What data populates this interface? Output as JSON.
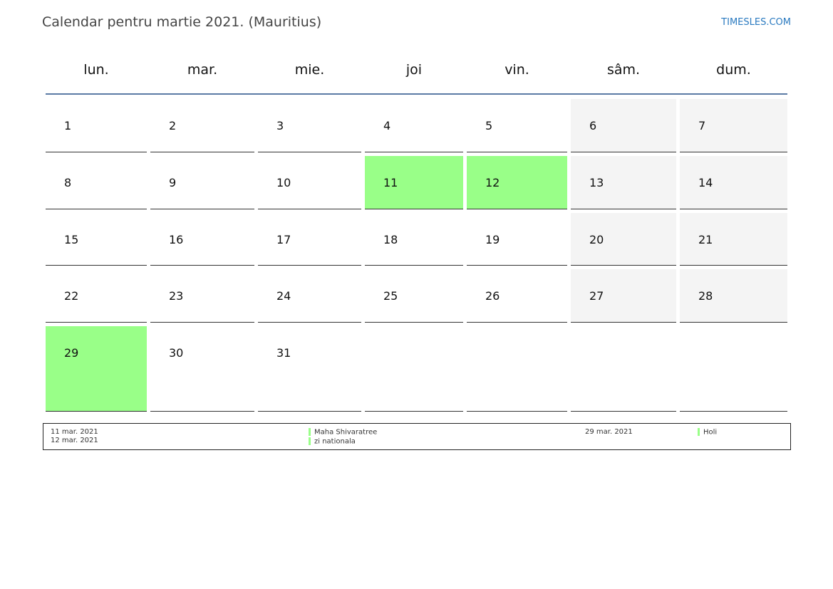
{
  "header": {
    "title": "Calendar pentru martie 2021. (Mauritius)",
    "brand": "TIMESLES.COM"
  },
  "weekdays": [
    "lun.",
    "mar.",
    "mie.",
    "joi",
    "vin.",
    "sâm.",
    "dum."
  ],
  "colors": {
    "holiday": "#99ff88",
    "weekend": "#f4f4f4",
    "header_line": "#5b7ba5"
  },
  "weeks": [
    [
      "1",
      "2",
      "3",
      "4",
      "5",
      "6",
      "7"
    ],
    [
      "8",
      "9",
      "10",
      "11",
      "12",
      "13",
      "14"
    ],
    [
      "15",
      "16",
      "17",
      "18",
      "19",
      "20",
      "21"
    ],
    [
      "22",
      "23",
      "24",
      "25",
      "26",
      "27",
      "28"
    ],
    [
      "29",
      "30",
      "31",
      "",
      "",
      "",
      ""
    ]
  ],
  "holidays": [
    "11",
    "12",
    "29"
  ],
  "legend": [
    {
      "date": "11 mar. 2021",
      "name": "Maha Shivaratree"
    },
    {
      "date": "12 mar. 2021",
      "name": "zi nationala"
    },
    {
      "date": "29 mar. 2021",
      "name": "Holi"
    }
  ]
}
